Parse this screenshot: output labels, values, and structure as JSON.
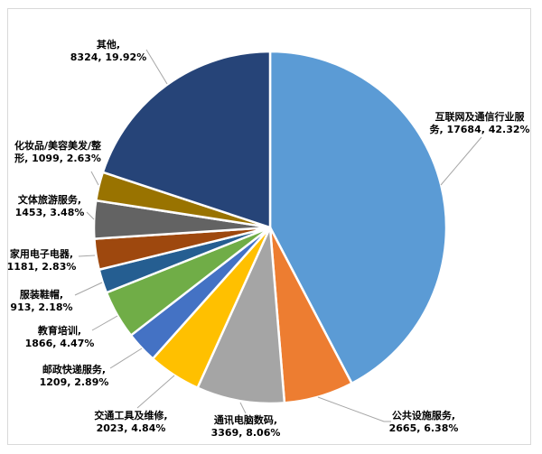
{
  "chart_data": {
    "type": "pie",
    "title": "",
    "legend": "none",
    "start_angle_deg": 0,
    "direction": "clockwise",
    "categories": [
      "互联网及通信行业服务",
      "公共设施服务",
      "通讯电脑数码",
      "交通工具及维修",
      "邮政快递服务",
      "教育培训",
      "服装鞋帽",
      "家用电子电器",
      "文体旅游服务",
      "化妆品/美容美发/整形",
      "其他"
    ],
    "values": [
      17684,
      2665,
      3369,
      2023,
      1209,
      1866,
      913,
      1181,
      1453,
      1099,
      8324
    ],
    "percent_labels": [
      "42.32%",
      "6.38%",
      "8.06%",
      "4.84%",
      "2.89%",
      "4.47%",
      "2.18%",
      "2.83%",
      "3.48%",
      "2.63%",
      "19.92%"
    ],
    "slices": [
      {
        "name": "互联网及通信行业服务",
        "value": 17684,
        "pct": "42.32%",
        "color": "#5B9BD5",
        "label_lines": [
          "互联网及通信行业服",
          "务, 17684, 42.32%"
        ]
      },
      {
        "name": "公共设施服务",
        "value": 2665,
        "pct": "6.38%",
        "color": "#ED7D31",
        "label_lines": [
          "公共设施服务,",
          "2665, 6.38%"
        ]
      },
      {
        "name": "通讯电脑数码",
        "value": 3369,
        "pct": "8.06%",
        "color": "#A5A5A5",
        "label_lines": [
          "通讯电脑数码,",
          "3369, 8.06%"
        ]
      },
      {
        "name": "交通工具及维修",
        "value": 2023,
        "pct": "4.84%",
        "color": "#FFC000",
        "label_lines": [
          "交通工具及维修,",
          "2023, 4.84%"
        ]
      },
      {
        "name": "邮政快递服务",
        "value": 1209,
        "pct": "2.89%",
        "color": "#4472C4",
        "label_lines": [
          "邮政快递服务,",
          "1209, 2.89%"
        ]
      },
      {
        "name": "教育培训",
        "value": 1866,
        "pct": "4.47%",
        "color": "#70AD47",
        "label_lines": [
          "教育培训,",
          "1866, 4.47%"
        ]
      },
      {
        "name": "服装鞋帽",
        "value": 913,
        "pct": "2.18%",
        "color": "#255E91",
        "label_lines": [
          "服装鞋帽,",
          "913, 2.18%"
        ]
      },
      {
        "name": "家用电子电器",
        "value": 1181,
        "pct": "2.83%",
        "color": "#9E480E",
        "label_lines": [
          "家用电子电器,",
          "1181, 2.83%"
        ]
      },
      {
        "name": "文体旅游服务",
        "value": 1453,
        "pct": "3.48%",
        "color": "#636363",
        "label_lines": [
          "文体旅游服务,",
          "1453, 3.48%"
        ]
      },
      {
        "name": "化妆品/美容美发/整形",
        "value": 1099,
        "pct": "2.63%",
        "color": "#997300",
        "label_lines": [
          "化妆品/美容美发/整",
          "形, 1099, 2.63%"
        ]
      },
      {
        "name": "其他",
        "value": 8324,
        "pct": "19.92%",
        "color": "#264478",
        "label_lines": [
          "其他,",
          "8324, 19.92%"
        ]
      }
    ],
    "style_colors": {
      "leader_line": "#A6A6A6",
      "frame_border": "#D9D9D9",
      "slice_separator": "#FFFFFF",
      "label_text": "#000000",
      "background": "#FFFFFF"
    }
  }
}
